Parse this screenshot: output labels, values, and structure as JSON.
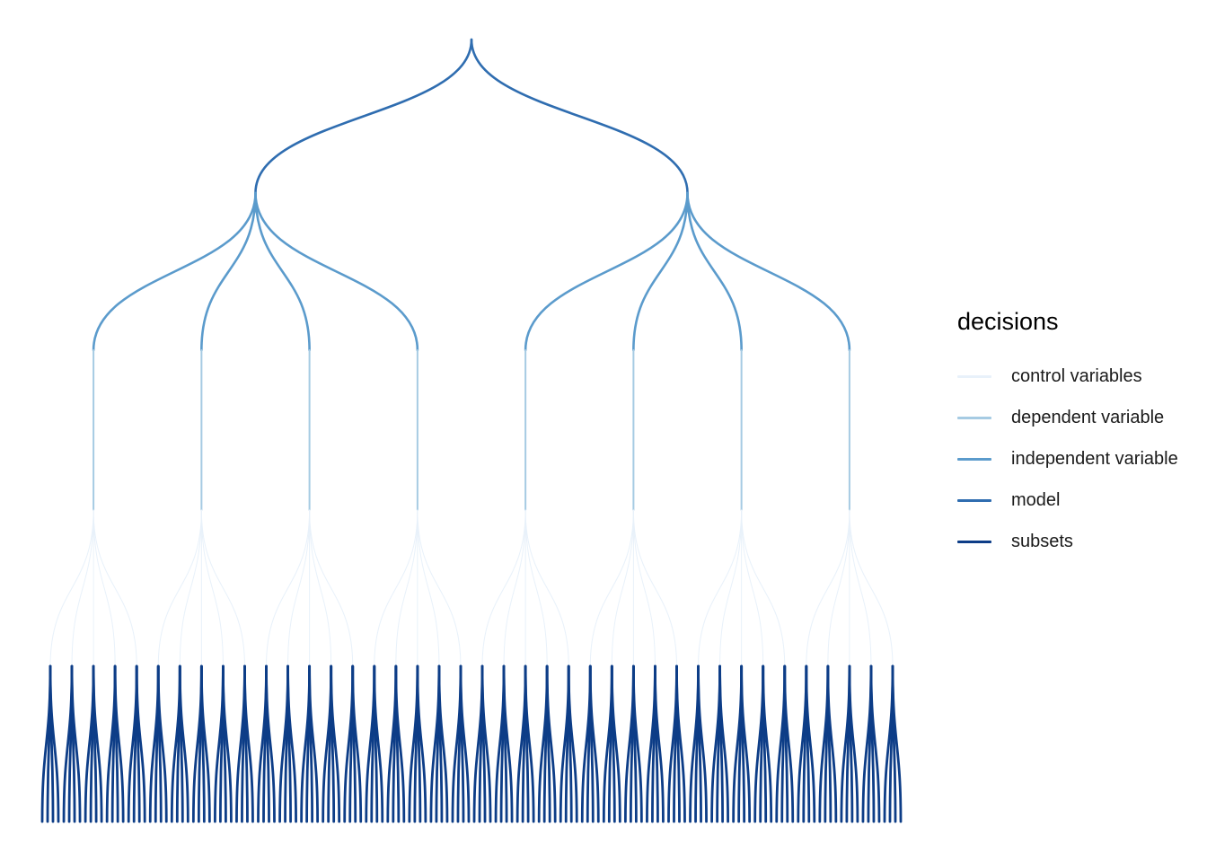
{
  "legend": {
    "title": "decisions",
    "items": [
      {
        "label": "control variables",
        "color": "#e8f1fa"
      },
      {
        "label": "dependent variable",
        "color": "#a6cbe3"
      },
      {
        "label": "independent variable",
        "color": "#5b9bcc"
      },
      {
        "label": "model",
        "color": "#2f6db0"
      },
      {
        "label": "subsets",
        "color": "#0d3d87"
      }
    ]
  },
  "tree": {
    "levels": [
      {
        "decision": "model",
        "color": "#2f6db0",
        "branches": 2
      },
      {
        "decision": "independent variable",
        "color": "#5b9bcc",
        "branches": 4
      },
      {
        "decision": "dependent variable",
        "color": "#a6cbe3",
        "branches": 1
      },
      {
        "decision": "control variables",
        "color": "#e8f1fa",
        "branches": 5
      },
      {
        "decision": "subsets",
        "color": "#0d3d87",
        "branches": 4
      }
    ]
  }
}
